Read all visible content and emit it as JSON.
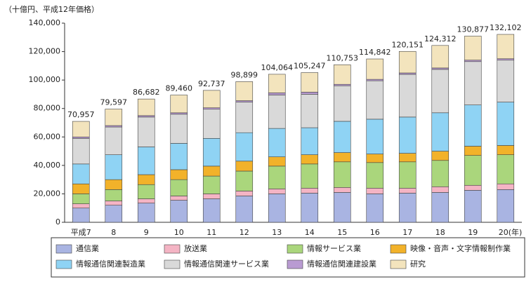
{
  "chart_data": {
    "type": "stacked-bar",
    "y_label": "（十億円、平成12年価格）",
    "categories": [
      "平成7",
      "8",
      "9",
      "10",
      "11",
      "12",
      "13",
      "14",
      "15",
      "16",
      "17",
      "18",
      "19",
      "20"
    ],
    "x_unit": "(年)",
    "ylim": [
      0,
      140000
    ],
    "yticks": [
      0,
      {
        "value": 20000,
        "label": "20,000"
      },
      {
        "value": 40000,
        "label": "40,000"
      },
      {
        "value": 60000,
        "label": "60,000"
      },
      {
        "value": 80000,
        "label": "80,000"
      },
      {
        "value": 100000,
        "label": "100,000"
      },
      {
        "value": 120000,
        "label": "120,000"
      },
      {
        "value": 140000,
        "label": "140,000"
      }
    ],
    "series": [
      {
        "name": "通信業",
        "color": "#a9b4e2",
        "values": [
          10000,
          12000,
          13500,
          15500,
          16500,
          18500,
          20000,
          20500,
          21000,
          20000,
          20500,
          21000,
          22500,
          23000
        ]
      },
      {
        "name": "放送業",
        "color": "#f4b4c4",
        "values": [
          3000,
          3000,
          3000,
          3000,
          3500,
          3500,
          3500,
          3500,
          3500,
          4000,
          3500,
          4000,
          3500,
          4000
        ]
      },
      {
        "name": "情報サービス業",
        "color": "#aad67c",
        "values": [
          7000,
          8000,
          10000,
          11500,
          12500,
          14000,
          16000,
          17000,
          18000,
          18000,
          18500,
          18500,
          21000,
          20500
        ]
      },
      {
        "name": "映像・音声・文字情報制作業",
        "color": "#f2b22a",
        "values": [
          7000,
          7000,
          7000,
          7000,
          7000,
          7000,
          6500,
          6500,
          6500,
          6000,
          6000,
          6500,
          6500,
          6500
        ]
      },
      {
        "name": "情報通信関連製造業",
        "color": "#8fd3f4",
        "values": [
          14000,
          17500,
          19500,
          18500,
          19500,
          20000,
          20000,
          19000,
          22000,
          24500,
          25500,
          27000,
          29000,
          30500
        ]
      },
      {
        "name": "情報通信関連サービス業",
        "color": "#d9d9d9",
        "values": [
          18000,
          19500,
          21000,
          20500,
          20500,
          21500,
          23500,
          23500,
          25000,
          27000,
          30000,
          30500,
          30500,
          29500
        ]
      },
      {
        "name": "情報通信関連建設業",
        "color": "#b99bd2",
        "values": [
          1000,
          1000,
          1000,
          1000,
          1000,
          1000,
          1500,
          1500,
          1000,
          1000,
          1000,
          1000,
          1000,
          1000
        ]
      },
      {
        "name": "研究",
        "color": "#f3e4bd",
        "values": [
          10957,
          11597,
          11682,
          12460,
          12237,
          13399,
          13064,
          13747,
          13753,
          14342,
          15151,
          15812,
          16877,
          17102
        ]
      }
    ],
    "totals": {
      "values": [
        70957,
        79597,
        86682,
        89460,
        92737,
        98899,
        104064,
        105247,
        110753,
        114842,
        120151,
        124312,
        130877,
        132102
      ],
      "value_labels": [
        "70,957",
        "79,597",
        "86,682",
        "89,460",
        "92,737",
        "98,899",
        "104,064",
        "105,247",
        "110,753",
        "114,842",
        "120,151",
        "124,312",
        "130,877",
        "132,102"
      ]
    },
    "legend_rows": 2
  }
}
